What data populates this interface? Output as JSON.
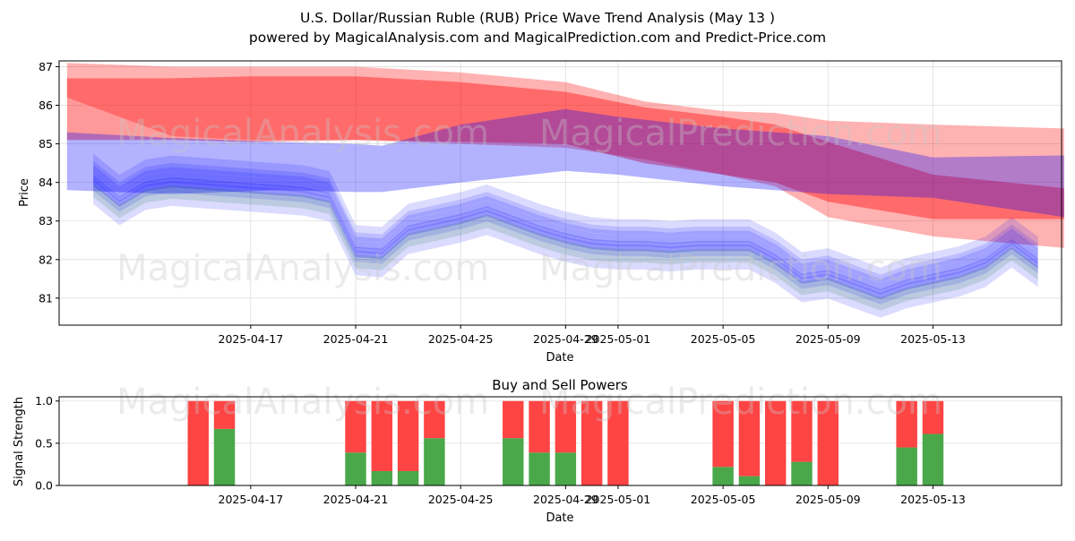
{
  "title_line1": "U.S. Dollar/Russian Ruble (RUB) Price Wave Trend Analysis (May 13 )",
  "title_line2": "powered by MagicalAnalysis.com and MagicalPrediction.com and Predict-Price.com",
  "watermarks": [
    "MagicalAnalysis.com",
    "MagicalPrediction.com"
  ],
  "colors": {
    "red": "#ff0000",
    "blue": "#0000ff",
    "green": "#008000",
    "buy": "#4aa84a",
    "sell": "#ff4444"
  },
  "chart_data": [
    {
      "type": "area",
      "title": "",
      "xlabel": "Date",
      "ylabel": "Price",
      "xlim": [
        -4.3,
        33.9
      ],
      "ylim": [
        80.3,
        87.15
      ],
      "x_tick_days": [
        3,
        7,
        11,
        15,
        17,
        21,
        25,
        29
      ],
      "x_tick_labels": [
        "2025-04-17",
        "2025-04-21",
        "2025-04-25",
        "2025-04-29",
        "2025-05-01",
        "2025-05-05",
        "2025-05-09",
        "2025-05-13"
      ],
      "y_ticks": [
        81,
        82,
        83,
        84,
        85,
        86,
        87
      ],
      "bands": [
        {
          "color": "red",
          "alpha": 0.3,
          "x": [
            -4,
            0,
            3,
            7,
            11,
            15,
            18,
            21,
            23,
            25,
            29,
            34
          ],
          "upper": [
            87.1,
            87.0,
            87.0,
            87.0,
            86.85,
            86.6,
            86.1,
            85.85,
            85.8,
            85.6,
            85.5,
            85.4
          ],
          "lower": [
            86.2,
            85.2,
            85.1,
            85.1,
            85.0,
            84.9,
            84.6,
            84.2,
            83.9,
            83.1,
            82.6,
            82.3
          ]
        },
        {
          "color": "red",
          "alpha": 0.4,
          "x": [
            -4,
            0,
            3,
            7,
            11,
            15,
            18,
            21,
            23,
            25,
            29,
            34
          ],
          "upper": [
            86.7,
            86.7,
            86.75,
            86.75,
            86.6,
            86.35,
            85.95,
            85.7,
            85.5,
            85.05,
            84.2,
            83.85
          ],
          "lower": [
            85.1,
            85.1,
            85.05,
            85.1,
            85.05,
            85.0,
            84.5,
            84.2,
            84.0,
            83.5,
            83.05,
            83.05
          ]
        },
        {
          "color": "blue",
          "alpha": 0.3,
          "x": [
            -4,
            0,
            4,
            7,
            8,
            11,
            15,
            17,
            21,
            25,
            29,
            34
          ],
          "upper": [
            85.3,
            85.15,
            85.05,
            85.0,
            84.95,
            85.5,
            85.9,
            85.7,
            85.4,
            85.2,
            84.65,
            84.7
          ],
          "lower": [
            83.8,
            83.7,
            83.8,
            83.75,
            83.75,
            84.0,
            84.3,
            84.2,
            83.9,
            83.7,
            83.6,
            83.1
          ]
        }
      ],
      "waves": {
        "x": [
          -3.0,
          -2.0,
          -1.0,
          0.0,
          1.0,
          2.0,
          3.0,
          4.0,
          5.0,
          6.0,
          7.0,
          8.0,
          9.0,
          10.0,
          11.0,
          12.0,
          13.0,
          14.0,
          15.0,
          16.0,
          17.0,
          18.0,
          19.0,
          20.0,
          21.0,
          22.0,
          23.0,
          24.0,
          25.0,
          26.0,
          27.0,
          28.0,
          29.0,
          30.0,
          31.0,
          32.0,
          33.0
        ],
        "base": [
          84.05,
          83.5,
          83.9,
          84.0,
          83.95,
          83.9,
          83.85,
          83.8,
          83.75,
          83.6,
          82.2,
          82.15,
          82.75,
          82.9,
          83.05,
          83.25,
          83.0,
          82.75,
          82.55,
          82.4,
          82.35,
          82.35,
          82.3,
          82.35,
          82.35,
          82.35,
          82.0,
          81.5,
          81.6,
          81.35,
          81.1,
          81.35,
          81.5,
          81.65,
          81.9,
          82.4,
          81.9
        ],
        "offsets": [
          0.6,
          0.25,
          0.0,
          -0.2,
          -0.45,
          0.9,
          0.45,
          -0.7
        ],
        "thickness": [
          0.35,
          0.3,
          0.25,
          0.3,
          0.35,
          0.4,
          0.3,
          0.45
        ],
        "colors": [
          "blue",
          "blue",
          "blue",
          "blue",
          "green",
          "blue",
          "blue",
          "blue"
        ],
        "alpha": 0.1
      }
    },
    {
      "type": "bar",
      "title": "Buy and Sell Powers",
      "xlabel": "Date",
      "ylabel": "Signal Strength",
      "xlim": [
        -4.3,
        33.9
      ],
      "ylim": [
        0,
        1.05
      ],
      "y_ticks": [
        0.0,
        0.5,
        1.0
      ],
      "y_tick_labels": [
        "0.0",
        "0.5",
        "1.0"
      ],
      "x_tick_days": [
        3,
        7,
        11,
        15,
        17,
        21,
        25,
        29
      ],
      "x_tick_labels": [
        "2025-04-17",
        "2025-04-21",
        "2025-04-25",
        "2025-04-29",
        "2025-05-01",
        "2025-05-05",
        "2025-05-09",
        "2025-05-13"
      ],
      "days": [
        1,
        2,
        7,
        8,
        9,
        10,
        13,
        14,
        15,
        16,
        17,
        21,
        22,
        23,
        24,
        25,
        28,
        29
      ],
      "dates": [
        "2025-04-15",
        "2025-04-16",
        "2025-04-21",
        "2025-04-22",
        "2025-04-23",
        "2025-04-24",
        "2025-04-27",
        "2025-04-28",
        "2025-04-29",
        "2025-04-30",
        "2025-05-01",
        "2025-05-05",
        "2025-05-06",
        "2025-05-07",
        "2025-05-08",
        "2025-05-09",
        "2025-05-12",
        "2025-05-13"
      ],
      "buy": [
        0.0,
        0.67,
        0.39,
        0.17,
        0.17,
        0.56,
        0.56,
        0.39,
        0.39,
        0.0,
        0.0,
        0.22,
        0.11,
        0.0,
        0.28,
        0.0,
        0.45,
        0.61
      ],
      "sell": [
        1.0,
        0.33,
        0.61,
        0.83,
        0.83,
        0.44,
        0.44,
        0.61,
        0.61,
        1.0,
        1.0,
        0.78,
        0.89,
        1.0,
        0.72,
        1.0,
        0.55,
        0.39
      ]
    }
  ]
}
